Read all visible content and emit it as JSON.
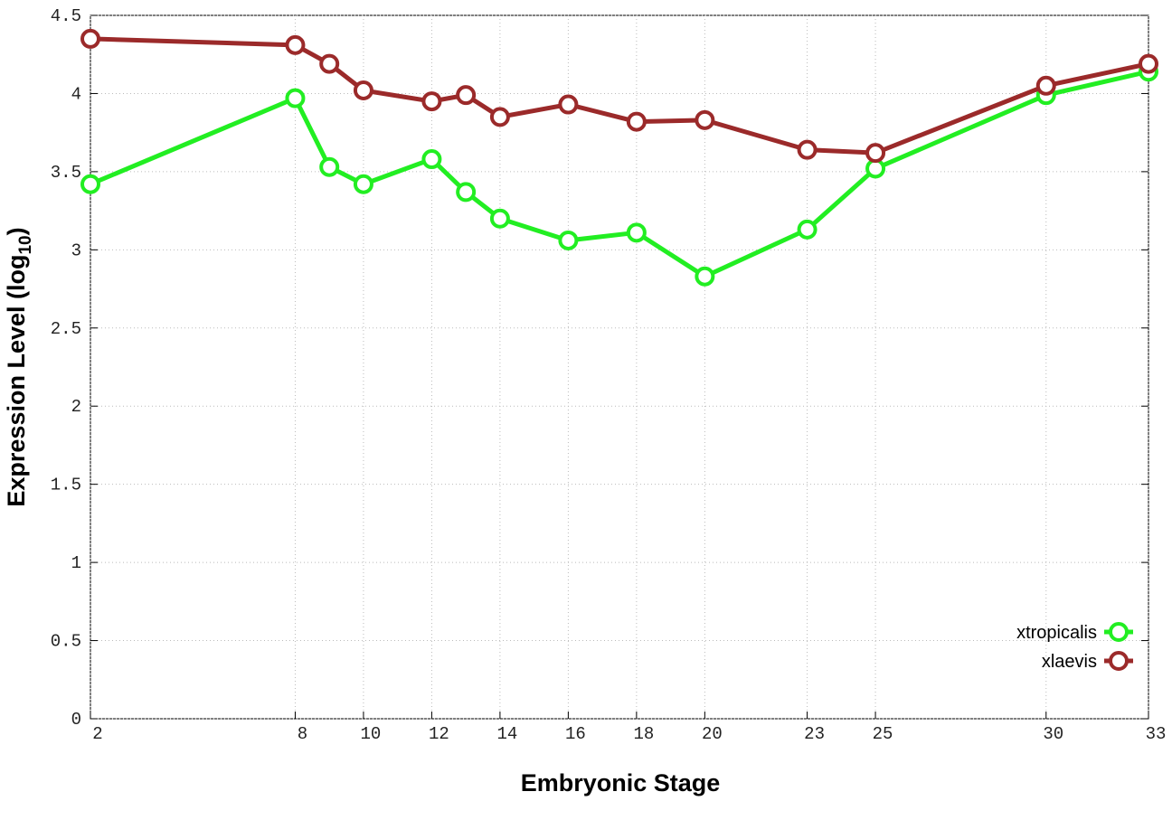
{
  "chart_data": {
    "type": "line",
    "xlabel": "Embryonic Stage",
    "ylabel": [
      "Expression Level (log",
      "10",
      ")"
    ],
    "x": [
      2,
      8,
      9,
      10,
      12,
      13,
      14,
      16,
      18,
      20,
      23,
      25,
      30,
      33
    ],
    "series": [
      {
        "name": "xtropicalis",
        "color": "#22ee22",
        "values": [
          3.42,
          3.97,
          3.53,
          3.42,
          3.58,
          3.37,
          3.2,
          3.06,
          3.11,
          2.83,
          3.13,
          3.52,
          3.99,
          4.14
        ]
      },
      {
        "name": "xlaevis",
        "color": "#9b2a2a",
        "values": [
          4.35,
          4.31,
          4.19,
          4.02,
          3.95,
          3.99,
          3.85,
          3.93,
          3.82,
          3.83,
          3.64,
          3.62,
          4.05,
          4.19
        ]
      }
    ],
    "xlim": [
      2,
      33
    ],
    "xticks": [
      2,
      8,
      10,
      12,
      14,
      16,
      18,
      20,
      23,
      25,
      30,
      33
    ],
    "ylim": [
      0,
      4.5
    ],
    "yticks": [
      0,
      0.5,
      1,
      1.5,
      2,
      2.5,
      3,
      3.5,
      4,
      4.5
    ],
    "grid": true,
    "legend": "lower right"
  }
}
